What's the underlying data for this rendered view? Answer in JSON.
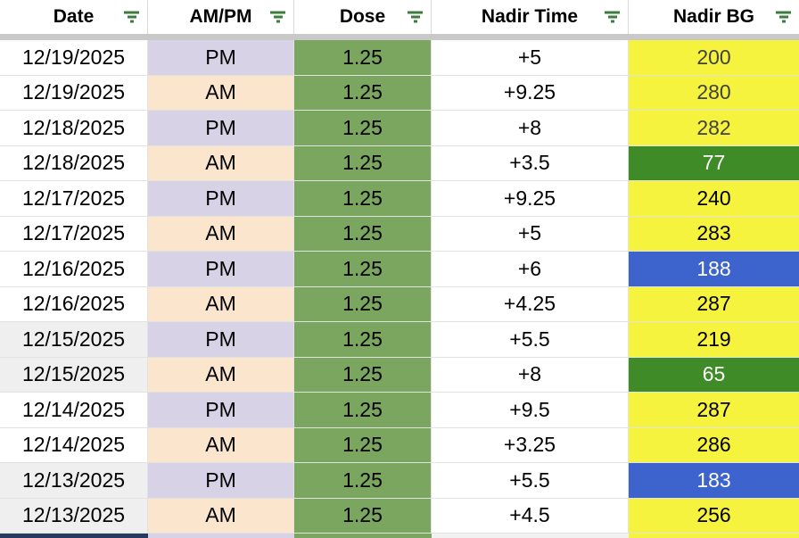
{
  "table": {
    "columns": [
      {
        "label": "Date",
        "icon": "filter-icon"
      },
      {
        "label": "AM/PM",
        "icon": "filter-icon"
      },
      {
        "label": "Dose",
        "icon": "filter-icon"
      },
      {
        "label": "Nadir Time",
        "icon": "filter-icon"
      },
      {
        "label": "Nadir BG",
        "icon": "filter-icon"
      }
    ],
    "rows": [
      {
        "date": "12/19/2025",
        "ampm": "PM",
        "dose": "1.25",
        "nadir_time": "+5",
        "nadir_bg": "200",
        "nadir_style": "yellow_dim",
        "date_shaded": false
      },
      {
        "date": "12/19/2025",
        "ampm": "AM",
        "dose": "1.25",
        "nadir_time": "+9.25",
        "nadir_bg": "280",
        "nadir_style": "yellow_dim",
        "date_shaded": false
      },
      {
        "date": "12/18/2025",
        "ampm": "PM",
        "dose": "1.25",
        "nadir_time": "+8",
        "nadir_bg": "282",
        "nadir_style": "yellow_dim",
        "date_shaded": false
      },
      {
        "date": "12/18/2025",
        "ampm": "AM",
        "dose": "1.25",
        "nadir_time": "+3.5",
        "nadir_bg": "77",
        "nadir_style": "green",
        "date_shaded": false
      },
      {
        "date": "12/17/2025",
        "ampm": "PM",
        "dose": "1.25",
        "nadir_time": "+9.25",
        "nadir_bg": "240",
        "nadir_style": "yellow",
        "date_shaded": false
      },
      {
        "date": "12/17/2025",
        "ampm": "AM",
        "dose": "1.25",
        "nadir_time": "+5",
        "nadir_bg": "283",
        "nadir_style": "yellow",
        "date_shaded": false
      },
      {
        "date": "12/16/2025",
        "ampm": "PM",
        "dose": "1.25",
        "nadir_time": "+6",
        "nadir_bg": "188",
        "nadir_style": "blue",
        "date_shaded": false
      },
      {
        "date": "12/16/2025",
        "ampm": "AM",
        "dose": "1.25",
        "nadir_time": "+4.25",
        "nadir_bg": "287",
        "nadir_style": "yellow",
        "date_shaded": false
      },
      {
        "date": "12/15/2025",
        "ampm": "PM",
        "dose": "1.25",
        "nadir_time": "+5.5",
        "nadir_bg": "219",
        "nadir_style": "yellow",
        "date_shaded": true
      },
      {
        "date": "12/15/2025",
        "ampm": "AM",
        "dose": "1.25",
        "nadir_time": "+8",
        "nadir_bg": "65",
        "nadir_style": "green",
        "date_shaded": true
      },
      {
        "date": "12/14/2025",
        "ampm": "PM",
        "dose": "1.25",
        "nadir_time": "+9.5",
        "nadir_bg": "287",
        "nadir_style": "yellow",
        "date_shaded": false
      },
      {
        "date": "12/14/2025",
        "ampm": "AM",
        "dose": "1.25",
        "nadir_time": "+3.25",
        "nadir_bg": "286",
        "nadir_style": "yellow",
        "date_shaded": false
      },
      {
        "date": "12/13/2025",
        "ampm": "PM",
        "dose": "1.25",
        "nadir_time": "+5.5",
        "nadir_bg": "183",
        "nadir_style": "blue",
        "date_shaded": true
      },
      {
        "date": "12/13/2025",
        "ampm": "AM",
        "dose": "1.25",
        "nadir_time": "+4.5",
        "nadir_bg": "256",
        "nadir_style": "yellow",
        "date_shaded": true
      }
    ]
  },
  "colors": {
    "icon_green": "#3c7d3e",
    "freeze_gray": "#c9c9c9",
    "gridline": "#e2e2e2",
    "pm_lavender": "#d8d2e7",
    "am_peach": "#fbe5cc",
    "dose_green": "#7aa65f",
    "bg_yellow": "#f5f33e",
    "bg_green": "#3e8b27",
    "bg_blue": "#3d64cd",
    "date_shaded": "#efefef",
    "partial_navy": "#263a5e"
  }
}
